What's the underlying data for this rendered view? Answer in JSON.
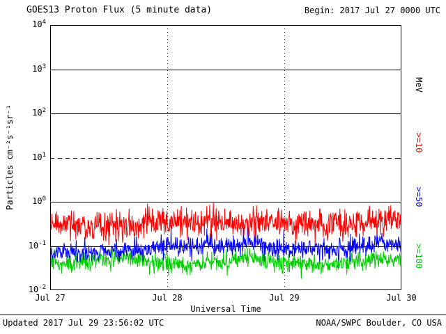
{
  "header": {
    "title": "GOES13 Proton Flux (5 minute data)",
    "begin": "Begin: 2017 Jul 27 0000 UTC"
  },
  "footer": {
    "updated": "Updated 2017 Jul 29 23:56:02 UTC",
    "source": "NOAA/SWPC Boulder, CO USA"
  },
  "chart_data": {
    "type": "line",
    "title": "GOES13 Proton Flux (5 minute data)",
    "xlabel": "Universal Time",
    "ylabel": "Particles cm⁻²s⁻¹sr⁻¹",
    "right_axis_label": "MeV",
    "x_ticks": [
      "Jul 27",
      "Jul 28",
      "Jul 29",
      "Jul 30"
    ],
    "y_axis": {
      "scale": "log10",
      "min_exponent": -2,
      "max_exponent": 4,
      "tick_base": "10",
      "tick_exponents": [
        4,
        3,
        2,
        1,
        0,
        -1,
        -2
      ]
    },
    "gridlines": {
      "horizontal_exponents": [
        3,
        2,
        1,
        0,
        -1
      ],
      "dashed_exponent": 1,
      "vertical_day_boundaries": [
        "Jul 28",
        "Jul 29"
      ]
    },
    "time_span_days": 3,
    "cadence_minutes": 5,
    "points_per_series": 864,
    "legend": [
      {
        "label": ">=10",
        "color": "#ff0000"
      },
      {
        "label": ">=50",
        "color": "#0000ff"
      },
      {
        "label": ">=100",
        "color": "#00cc00"
      }
    ],
    "series": [
      {
        "name": ">=10 MeV",
        "color": "#ff0000",
        "approx_mean_flux": 0.32,
        "approx_range": [
          0.08,
          0.9
        ],
        "baseline": 0.32,
        "log10_noise": 0.16,
        "spike_prob": 0.05,
        "spike_mag": 0.25,
        "min": 0.07,
        "max": 0.95
      },
      {
        "name": ">=50 MeV",
        "color": "#0000ff",
        "approx_mean_flux": 0.085,
        "approx_range": [
          0.05,
          0.3
        ],
        "baseline": 0.085,
        "log10_noise": 0.1,
        "spike_prob": 0.04,
        "spike_mag": 0.3,
        "min": 0.045,
        "max": 0.3
      },
      {
        "name": ">=100 MeV",
        "color": "#00cc00",
        "approx_mean_flux": 0.042,
        "approx_range": [
          0.02,
          0.09
        ],
        "baseline": 0.042,
        "log10_noise": 0.1,
        "spike_prob": 0.03,
        "spike_mag": 0.2,
        "min": 0.018,
        "max": 0.09
      }
    ]
  }
}
